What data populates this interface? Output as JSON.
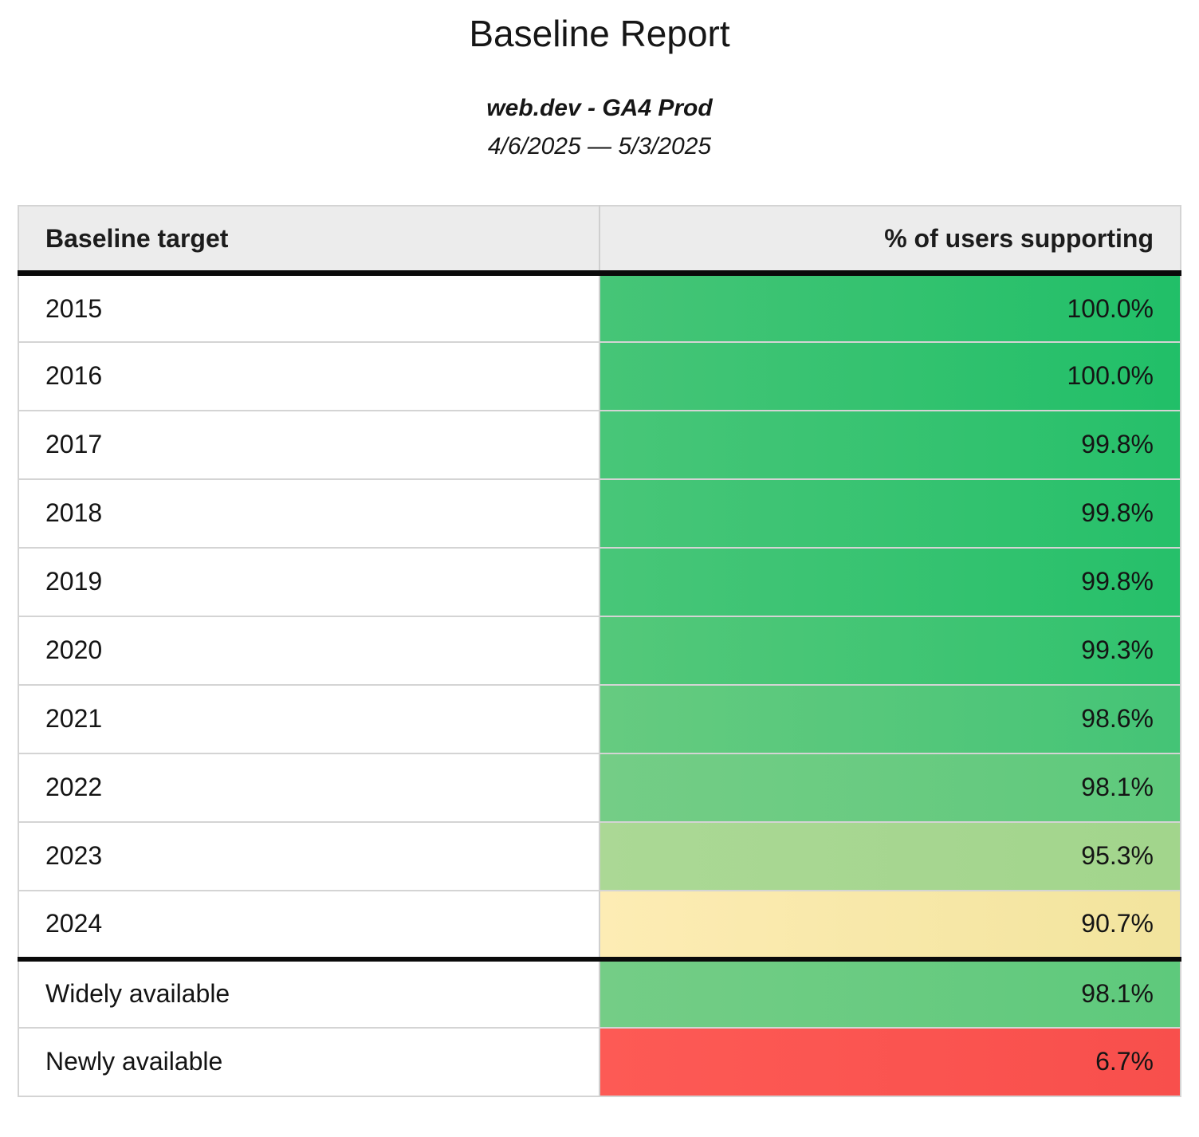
{
  "page": {
    "title": "Baseline Report",
    "subtitle": "web.dev - GA4 Prod",
    "date_range": "4/6/2025 — 5/3/2025"
  },
  "table": {
    "columns": [
      {
        "label": "Baseline target",
        "align": "left"
      },
      {
        "label": "% of users supporting",
        "align": "right"
      }
    ],
    "rows": [
      {
        "label": "2015",
        "value": "100.0%",
        "color_left": "#46c577",
        "color_right": "#21bf68",
        "section_start": false
      },
      {
        "label": "2016",
        "value": "100.0%",
        "color_left": "#46c577",
        "color_right": "#21bf68",
        "section_start": false
      },
      {
        "label": "2017",
        "value": "99.8%",
        "color_left": "#48c678",
        "color_right": "#26c06a",
        "section_start": false
      },
      {
        "label": "2018",
        "value": "99.8%",
        "color_left": "#48c678",
        "color_right": "#26c06a",
        "section_start": false
      },
      {
        "label": "2019",
        "value": "99.8%",
        "color_left": "#48c678",
        "color_right": "#26c06a",
        "section_start": false
      },
      {
        "label": "2020",
        "value": "99.3%",
        "color_left": "#54c87a",
        "color_right": "#30c26e",
        "section_start": false
      },
      {
        "label": "2021",
        "value": "98.6%",
        "color_left": "#66cb80",
        "color_right": "#44c476",
        "section_start": false
      },
      {
        "label": "2022",
        "value": "98.1%",
        "color_left": "#74cd86",
        "color_right": "#5ec97c",
        "section_start": false
      },
      {
        "label": "2023",
        "value": "95.3%",
        "color_left": "#abd895",
        "color_right": "#a2d58c",
        "section_start": false
      },
      {
        "label": "2024",
        "value": "90.7%",
        "color_left": "#fdecb4",
        "color_right": "#f2e49d",
        "section_start": false
      },
      {
        "label": "Widely available",
        "value": "98.1%",
        "color_left": "#74cd86",
        "color_right": "#5ec97c",
        "section_start": true
      },
      {
        "label": "Newly available",
        "value": "6.7%",
        "color_left": "#fd5a55",
        "color_right": "#f84f4c",
        "section_start": false
      }
    ]
  },
  "colors": {
    "header_bg": "#ececec",
    "header_divider": "#0a0a0a",
    "section_divider": "#0a0a0a",
    "row_border": "#d4d4d4",
    "table_border": "#d4d4d4",
    "column_divider": "#cfcfcf",
    "text": "#161616"
  },
  "chart_data": {
    "type": "table",
    "title": "Baseline Report",
    "subtitle": "web.dev - GA4 Prod",
    "date_range": "4/6/2025 — 5/3/2025",
    "columns": [
      "Baseline target",
      "% of users supporting"
    ],
    "categories": [
      "2015",
      "2016",
      "2017",
      "2018",
      "2019",
      "2020",
      "2021",
      "2022",
      "2023",
      "2024",
      "Widely available",
      "Newly available"
    ],
    "values": [
      100.0,
      100.0,
      99.8,
      99.8,
      99.8,
      99.3,
      98.6,
      98.1,
      95.3,
      90.7,
      98.1,
      6.7
    ],
    "units": "percent",
    "color_scale": "red-yellow-green by value"
  }
}
